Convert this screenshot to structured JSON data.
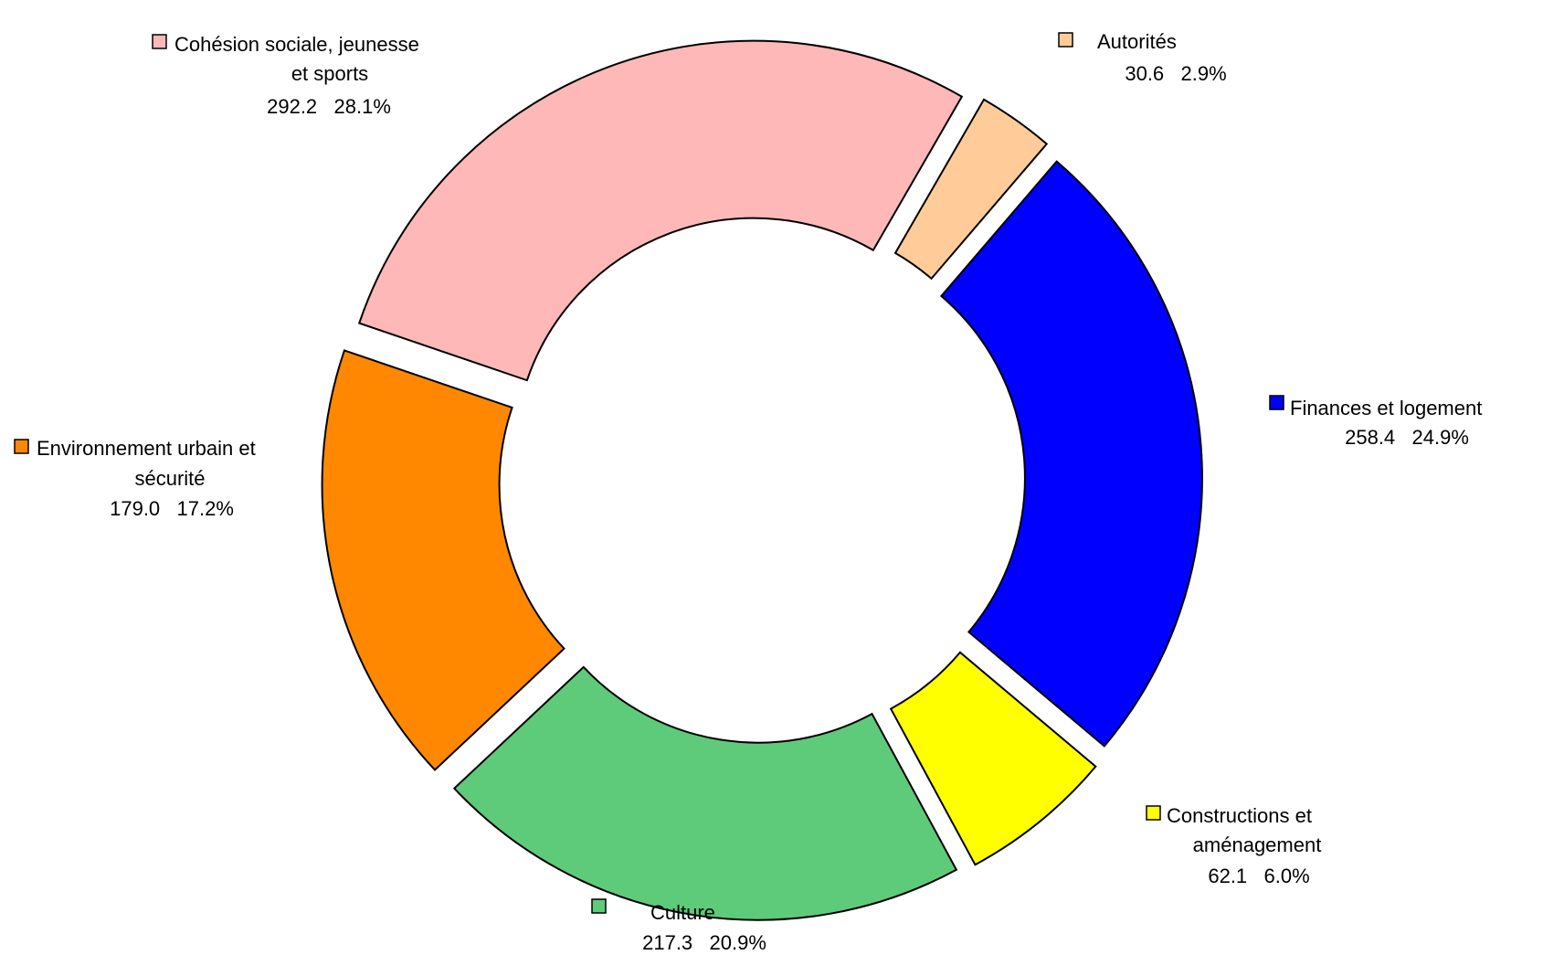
{
  "chart_data": {
    "type": "pie",
    "variant": "exploded-donut",
    "title": "",
    "series": [
      {
        "name": "Autorités",
        "label_lines": [
          "Autorités"
        ],
        "value": 30.6,
        "value_text": "30.6",
        "percent_text": "2.9%",
        "color": "#FFCC99"
      },
      {
        "name": "Finances et logement",
        "label_lines": [
          "Finances et logement"
        ],
        "value": 258.4,
        "value_text": "258.4",
        "percent_text": "24.9%",
        "color": "#0000FF"
      },
      {
        "name": "Constructions et aménagement",
        "label_lines": [
          "Constructions et",
          "aménagement"
        ],
        "value": 62.1,
        "value_text": "62.1",
        "percent_text": "6.0%",
        "color": "#FFFF00"
      },
      {
        "name": "Culture",
        "label_lines": [
          "Culture"
        ],
        "value": 217.3,
        "value_text": "217.3",
        "percent_text": "20.9%",
        "color": "#5ECB7A"
      },
      {
        "name": "Environnement urbain et sécurité",
        "label_lines": [
          "Environnement urbain et",
          "sécurité"
        ],
        "value": 179.0,
        "value_text": "179.0",
        "percent_text": "17.2%",
        "color": "#FF8800"
      },
      {
        "name": "Cohésion sociale, jeunesse et sports",
        "label_lines": [
          "Cohésion sociale, jeunesse",
          "et sports"
        ],
        "value": 292.2,
        "value_text": "292.2",
        "percent_text": "28.1%",
        "color": "#FFB8B8"
      }
    ]
  }
}
